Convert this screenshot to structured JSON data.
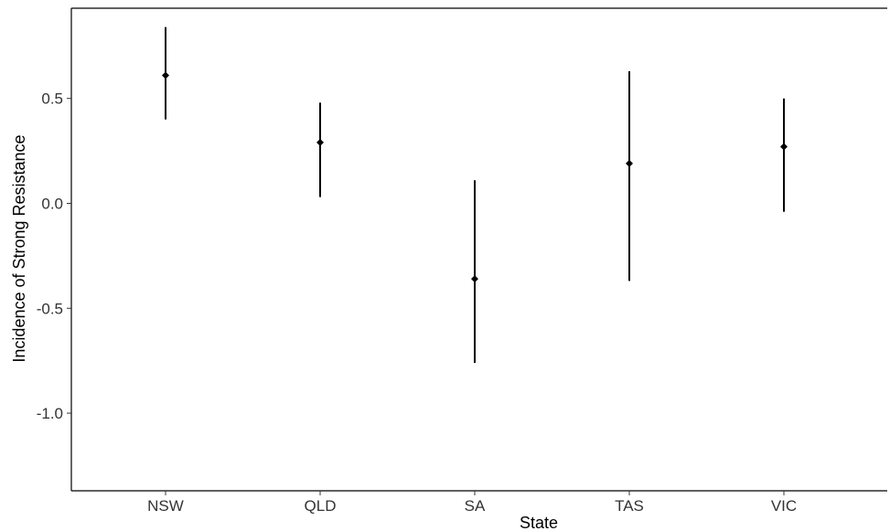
{
  "chart_data": {
    "type": "scatter",
    "subtype": "point-with-error-bars",
    "title": "",
    "xlabel": "State",
    "ylabel": "Incidence of Strong Resistance",
    "categories": [
      "NSW",
      "QLD",
      "SA",
      "TAS",
      "VIC"
    ],
    "series": [
      {
        "values": [
          0.61,
          0.29,
          -0.36,
          0.19,
          0.27
        ],
        "lower": [
          0.4,
          0.03,
          -0.76,
          -0.37,
          -0.04
        ],
        "upper": [
          0.84,
          0.48,
          0.11,
          0.63,
          0.5
        ]
      }
    ],
    "ylim": [
      -1.37,
      0.93
    ],
    "yticks": [
      0.5,
      0.0,
      -0.5,
      -1.0
    ],
    "ytick_labels": [
      "0.5",
      "0.0",
      "-0.5",
      "-1.0"
    ],
    "grid": false,
    "legend": "none",
    "colors": {
      "marks": "#000000",
      "axis": "#000000",
      "background": "#ffffff"
    }
  }
}
